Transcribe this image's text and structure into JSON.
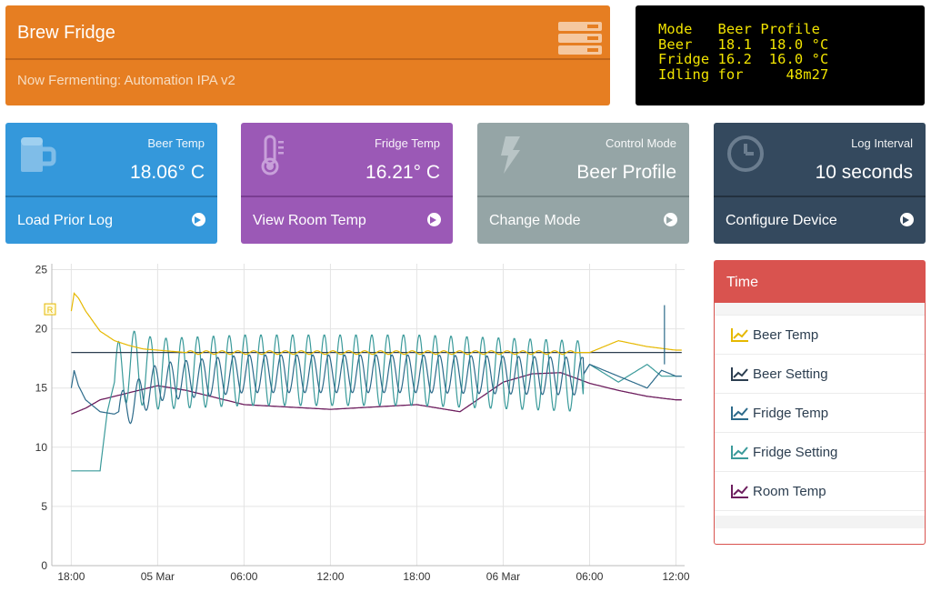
{
  "header": {
    "title": "Brew Fridge",
    "subtitle": "Now Fermenting: Automation IPA v2"
  },
  "lcd": {
    "lines": [
      "Mode   Beer Profile",
      "Beer   18.1  18.0 °C",
      "Fridge 16.2  16.0 °C",
      "Idling for     48m27"
    ]
  },
  "panels": {
    "beer": {
      "label": "Beer Temp",
      "value": "18.06° C",
      "link": "Load Prior Log"
    },
    "fridge": {
      "label": "Fridge Temp",
      "value": "16.21° C",
      "link": "View Room Temp"
    },
    "mode": {
      "label": "Control Mode",
      "value": "Beer Profile",
      "link": "Change Mode"
    },
    "log": {
      "label": "Log Interval",
      "value": "10 seconds",
      "link": "Configure Device"
    }
  },
  "legend": {
    "title": "Time",
    "items": [
      {
        "label": "Beer Temp",
        "color": "#e6b800"
      },
      {
        "label": "Beer Setting",
        "color": "#2c3e50"
      },
      {
        "label": "Fridge Temp",
        "color": "#2c6a8a"
      },
      {
        "label": "Fridge Setting",
        "color": "#3a9a9a"
      },
      {
        "label": "Room Temp",
        "color": "#6d1e5e"
      }
    ]
  },
  "chart_data": {
    "type": "line",
    "x_ticks": [
      "18:00",
      "05 Mar",
      "06:00",
      "12:00",
      "18:00",
      "06 Mar",
      "06:00",
      "12:00"
    ],
    "y_ticks": [
      0,
      5,
      10,
      15,
      20,
      25
    ],
    "ylim": [
      0,
      25.5
    ],
    "xlim_hours": [
      -1.35,
      42.6
    ],
    "annotation_marker": "R",
    "series": [
      {
        "name": "Beer Temp",
        "color": "#e6b800",
        "x": [
          0,
          0.2,
          0.5,
          1,
          2,
          3,
          4,
          5,
          6,
          7,
          8,
          10,
          12,
          20,
          30,
          36,
          38,
          40,
          42
        ],
        "y": [
          21.5,
          23,
          22.6,
          21.5,
          19.8,
          19,
          18.6,
          18.3,
          18.2,
          18.1,
          18,
          18,
          18,
          18,
          18,
          18,
          19,
          18.5,
          18.2
        ]
      },
      {
        "name": "Beer Setting",
        "color": "#2c3e50",
        "x": [
          0,
          42.6
        ],
        "y": [
          18,
          18
        ]
      },
      {
        "name": "Fridge Temp",
        "color": "#2c6a8a",
        "x": [
          0,
          0.2,
          0.5,
          1,
          2,
          3,
          4,
          5,
          6,
          12,
          24,
          35.5,
          36,
          38,
          40,
          41,
          42
        ],
        "y": [
          15,
          16.5,
          15.2,
          14,
          13,
          12.8,
          13.5,
          14.5,
          15.5,
          16.2,
          16.2,
          16,
          17,
          16,
          15,
          16.5,
          16
        ]
      },
      {
        "name": "Fridge Setting",
        "color": "#3a9a9a",
        "x": [
          0,
          1,
          2,
          2.5,
          3,
          4,
          5,
          6,
          12,
          24,
          35.5,
          36,
          38,
          40,
          41,
          42
        ],
        "y": [
          8,
          8,
          8,
          13,
          15.5,
          17,
          16.5,
          16.2,
          16.5,
          16.5,
          16,
          17,
          15.5,
          17,
          16,
          16
        ]
      },
      {
        "name": "Room Temp",
        "color": "#6d1e5e",
        "x": [
          0,
          1,
          2,
          4,
          6,
          8,
          12,
          18,
          24,
          27,
          30,
          32,
          34,
          36,
          38,
          40,
          42
        ],
        "y": [
          12.8,
          13.3,
          14,
          14.6,
          15.2,
          14.8,
          13.6,
          13.2,
          13.6,
          13,
          15.5,
          16.2,
          16.3,
          15.4,
          14.8,
          14.3,
          14
        ]
      }
    ]
  }
}
